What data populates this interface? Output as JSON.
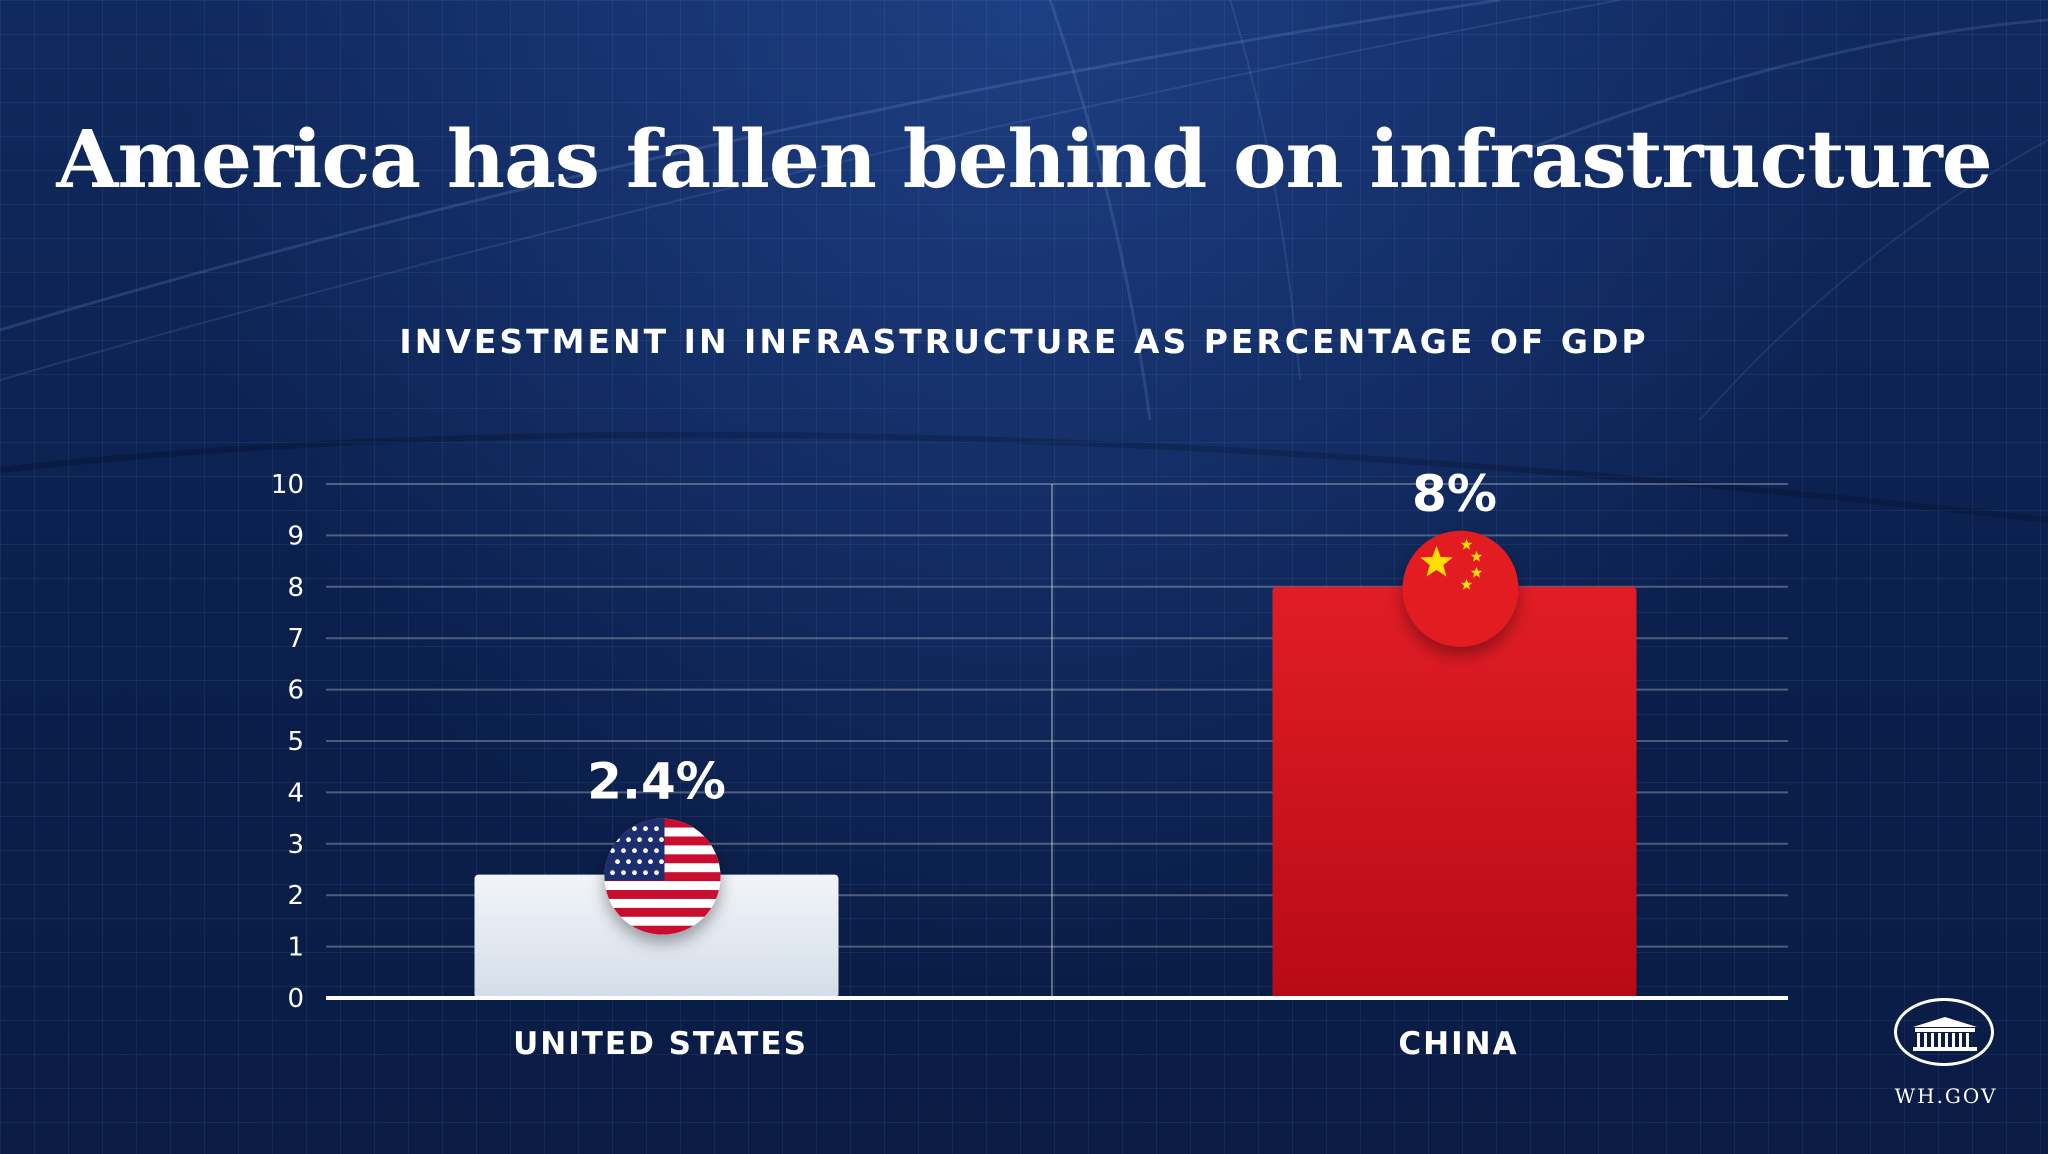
{
  "header": {
    "title": "America has fallen behind on infrastructure"
  },
  "chart_data": {
    "type": "bar",
    "title": "INVESTMENT IN INFRASTRUCTURE AS PERCENTAGE OF GDP",
    "xlabel": "",
    "ylabel": "",
    "ylim": [
      0,
      10
    ],
    "yticks": [
      "0",
      "1",
      "2",
      "3",
      "4",
      "5",
      "6",
      "7",
      "8",
      "9",
      "10"
    ],
    "grid": true,
    "categories": [
      "UNITED STATES",
      "CHINA"
    ],
    "values": [
      2.4,
      8
    ],
    "value_labels": [
      "2.4%",
      "8%"
    ],
    "bar_colors": [
      "#e7edf4",
      "#d81a24"
    ],
    "flags": [
      "us-flag-icon",
      "china-flag-icon"
    ]
  },
  "footer": {
    "logo_icon": "white-house-icon",
    "logo_text": "WH.GOV"
  }
}
